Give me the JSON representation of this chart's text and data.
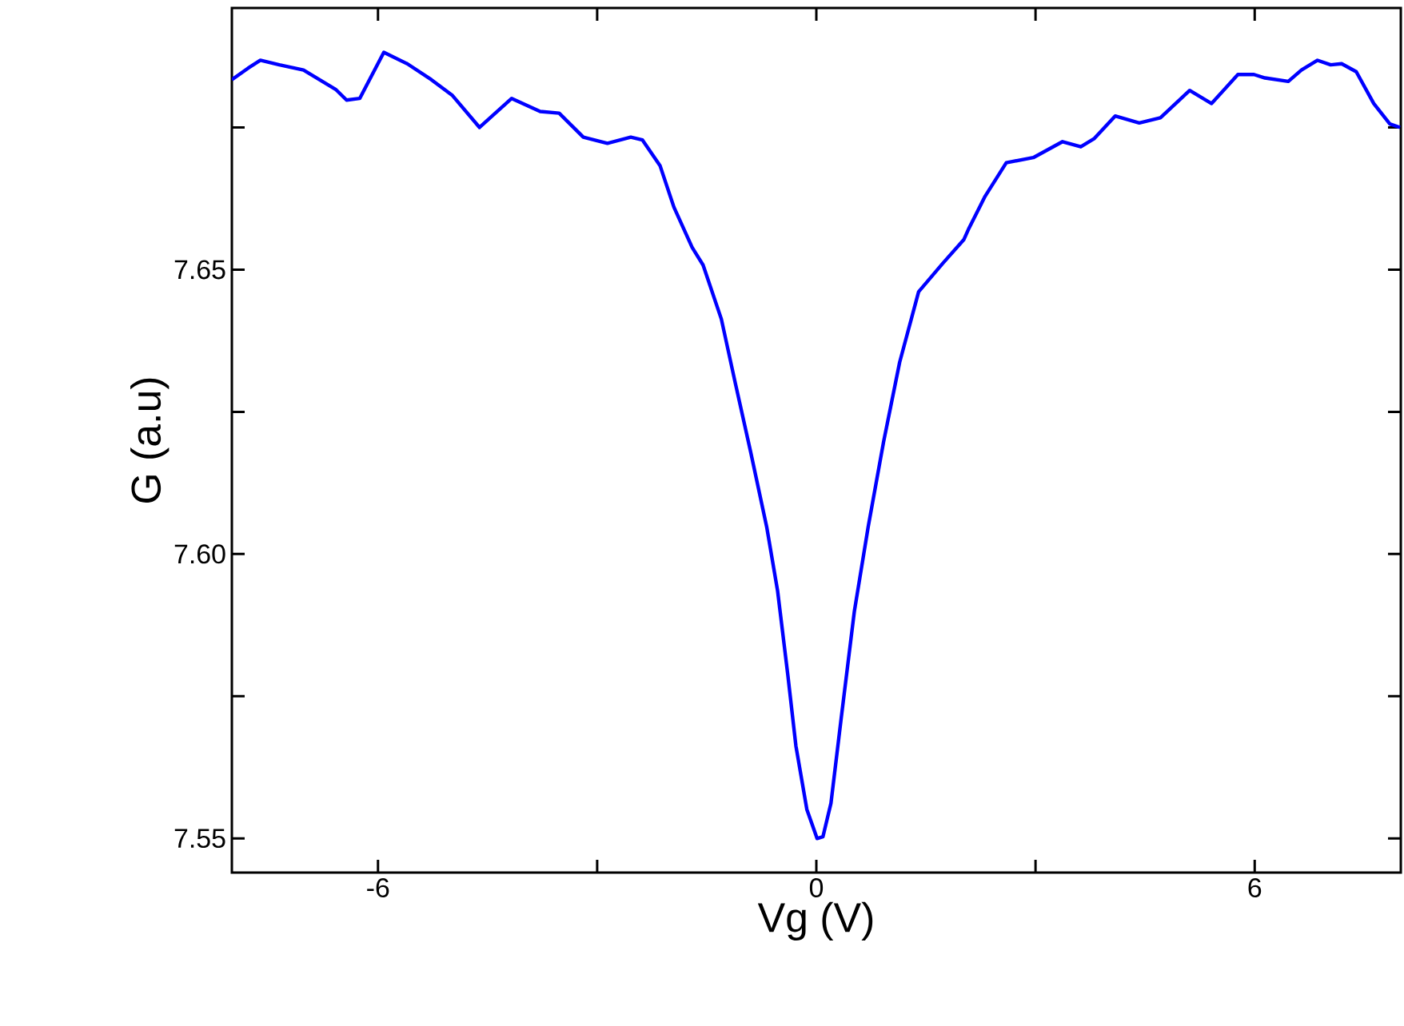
{
  "chart_data": {
    "type": "line",
    "xlabel": "Vg (V)",
    "ylabel": "G (a.u)",
    "color": "#0000ff",
    "xlim": [
      -8,
      8
    ],
    "ylim": [
      7.544,
      7.696
    ],
    "xticks": [
      -6,
      {
        "value": -3,
        "label": null
      },
      0,
      {
        "value": 3,
        "label": null
      },
      6
    ],
    "yticks": [
      7.55,
      {
        "value": 7.575,
        "label": null
      },
      {
        "value": 7.6,
        "label": "7.60"
      },
      {
        "value": 7.625,
        "label": null
      },
      7.65,
      {
        "value": 7.675,
        "label": null
      }
    ],
    "x": [
      -8.0,
      -7.78,
      -7.61,
      -7.35,
      -7.02,
      -6.58,
      -6.43,
      -6.25,
      -5.92,
      -5.6,
      -5.27,
      -4.98,
      -4.61,
      -4.17,
      -3.78,
      -3.52,
      -3.19,
      -2.86,
      -2.54,
      -2.38,
      -2.14,
      -1.95,
      -1.7,
      -1.55,
      -1.3,
      -1.11,
      -0.9,
      -0.68,
      -0.53,
      -0.39,
      -0.28,
      -0.13,
      0.01,
      0.09,
      0.2,
      0.34,
      0.52,
      0.71,
      0.92,
      1.14,
      1.4,
      1.73,
      2.02,
      2.09,
      2.31,
      2.6,
      2.97,
      3.37,
      3.62,
      3.8,
      4.09,
      4.42,
      4.71,
      5.11,
      5.41,
      5.77,
      5.99,
      6.14,
      6.46,
      6.64,
      6.86,
      7.04,
      7.19,
      7.39,
      7.63,
      7.85,
      7.99
    ],
    "values": [
      7.6834,
      7.6854,
      7.6868,
      7.686,
      7.6851,
      7.6817,
      7.6798,
      7.6801,
      7.6882,
      7.6862,
      7.6834,
      7.6806,
      7.675,
      7.6801,
      7.6778,
      7.6775,
      7.6733,
      7.6722,
      7.6733,
      7.6728,
      7.6683,
      7.661,
      7.6539,
      7.6508,
      7.6413,
      7.6301,
      7.618,
      7.6048,
      7.5935,
      7.5787,
      7.5663,
      7.5551,
      7.55,
      7.5503,
      7.5562,
      7.5711,
      7.5899,
      7.6048,
      7.6197,
      7.6337,
      7.6461,
      7.6511,
      7.6553,
      7.6573,
      7.6629,
      7.6688,
      7.6697,
      7.6725,
      7.6716,
      7.673,
      7.677,
      7.6758,
      7.6767,
      7.6815,
      7.6792,
      7.6843,
      7.6843,
      7.6837,
      7.6831,
      7.6851,
      7.6868,
      7.686,
      7.6862,
      7.6848,
      7.6792,
      7.6756,
      7.675
    ]
  }
}
